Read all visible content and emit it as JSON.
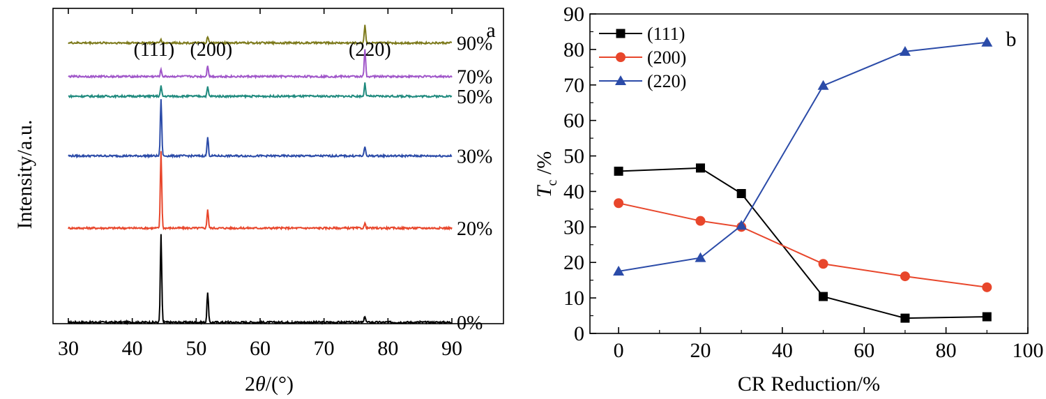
{
  "chart_data": [
    {
      "panel": "a",
      "type": "line",
      "xlabel_prefix": "2",
      "xlabel_theta": "θ",
      "xlabel_suffix": "/(°)",
      "ylabel": "Intensity/a.u.",
      "xlim": [
        30,
        90
      ],
      "xticks": [
        "30",
        "40",
        "50",
        "60",
        "70",
        "80",
        "90"
      ],
      "peak_labels": [
        {
          "text": "(111)",
          "x": 44.5
        },
        {
          "text": "(200)",
          "x": 51.8
        },
        {
          "text": "(220)",
          "x": 76.4
        }
      ],
      "series": [
        {
          "name": "0%",
          "color": "#000000",
          "baseline": 0.0,
          "peaks": [
            {
              "x": 44.5,
              "h": 0.28
            },
            {
              "x": 51.8,
              "h": 0.097
            },
            {
              "x": 76.4,
              "h": 0.02
            }
          ]
        },
        {
          "name": "20%",
          "color": "#e8462b",
          "baseline": 0.3,
          "peaks": [
            {
              "x": 44.5,
              "h": 0.246
            },
            {
              "x": 51.8,
              "h": 0.06
            },
            {
              "x": 76.4,
              "h": 0.015
            }
          ]
        },
        {
          "name": "30%",
          "color": "#2b4ba8",
          "baseline": 0.53,
          "peaks": [
            {
              "x": 44.5,
              "h": 0.183
            },
            {
              "x": 51.8,
              "h": 0.059
            },
            {
              "x": 76.4,
              "h": 0.03
            }
          ]
        },
        {
          "name": "50%",
          "color": "#1f8a7e",
          "baseline": 0.72,
          "peaks": [
            {
              "x": 44.5,
              "h": 0.032
            },
            {
              "x": 51.8,
              "h": 0.029
            },
            {
              "x": 76.4,
              "h": 0.041
            }
          ]
        },
        {
          "name": "70%",
          "color": "#a056c9",
          "baseline": 0.783,
          "peaks": [
            {
              "x": 44.5,
              "h": 0.022
            },
            {
              "x": 51.8,
              "h": 0.036
            },
            {
              "x": 76.4,
              "h": 0.086
            }
          ]
        },
        {
          "name": "90%",
          "color": "#7d7a1c",
          "baseline": 0.89,
          "peaks": [
            {
              "x": 44.5,
              "h": 0.012
            },
            {
              "x": 51.8,
              "h": 0.019
            },
            {
              "x": 76.4,
              "h": 0.059
            }
          ]
        }
      ],
      "panel_label": "a"
    },
    {
      "panel": "b",
      "type": "line",
      "xlabel": "CR Reduction/%",
      "ylabel_main": "T",
      "ylabel_sub": "c",
      "ylabel_rest": " /%",
      "xlim": [
        -7,
        100
      ],
      "ylim": [
        0,
        90
      ],
      "xticks": [
        0,
        20,
        40,
        60,
        80,
        100
      ],
      "yticks": [
        0,
        10,
        20,
        30,
        40,
        50,
        60,
        70,
        80,
        90
      ],
      "x": [
        0,
        20,
        30,
        50,
        70,
        90
      ],
      "series": [
        {
          "name": "(111)",
          "color": "#000000",
          "marker": "square",
          "values": [
            45.7,
            46.6,
            39.4,
            10.4,
            4.3,
            4.7
          ]
        },
        {
          "name": "(200)",
          "color": "#e8462b",
          "marker": "circle",
          "values": [
            36.7,
            31.7,
            30.0,
            19.6,
            16.1,
            13.0
          ]
        },
        {
          "name": "(220)",
          "color": "#2b4ba8",
          "marker": "triangle",
          "values": [
            17.5,
            21.3,
            30.4,
            69.8,
            79.4,
            82.0
          ]
        }
      ],
      "legend_position": "top-left",
      "panel_label": "b"
    }
  ]
}
